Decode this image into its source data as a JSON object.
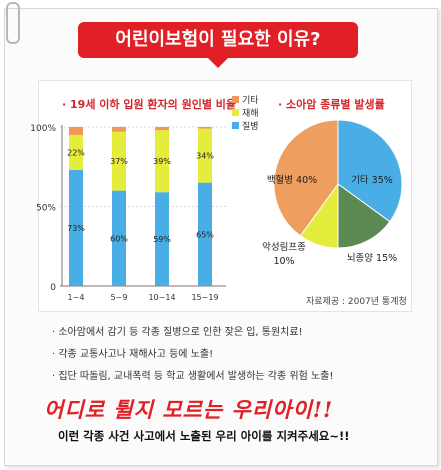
{
  "banner": {
    "title": "어린이보험이 필요한 이유?"
  },
  "chart_data": [
    {
      "type": "bar",
      "title": "· 19세 이하 입원 환자의 원인별 비율",
      "categories": [
        "1~4",
        "5~9",
        "10~14",
        "15~19"
      ],
      "series": [
        {
          "name": "질병",
          "values": [
            73,
            60,
            59,
            65
          ],
          "color": "#4aaee6"
        },
        {
          "name": "재해",
          "values": [
            22,
            37,
            39,
            34
          ],
          "color": "#e4ec3c"
        },
        {
          "name": "기타",
          "values": [
            5,
            3,
            2,
            1
          ],
          "color": "#f09a5a"
        }
      ],
      "yticks": [
        "0",
        "50%",
        "100%"
      ],
      "ylim": [
        0,
        100
      ],
      "legend": "right",
      "stacked": true
    },
    {
      "type": "pie",
      "title": "· 소아암 종류별 발생률",
      "slices": [
        {
          "label": "기타",
          "value": 35,
          "color": "#4aaee6"
        },
        {
          "label": "뇌종양",
          "value": 15,
          "color": "#5a8a52"
        },
        {
          "label": "악성림프종",
          "value": 10,
          "color": "#e4ec3c"
        },
        {
          "label": "백혈병",
          "value": 40,
          "color": "#ee9e5e"
        }
      ]
    }
  ],
  "source_note": "자료제공 : 2007년 통계청",
  "bullets": [
    "· 소아암에서 감기 등 각종 질병으로 인한 잦은 입, 통원치료!",
    "· 각종 교통사고나 재해사고 등에 노출!",
    "· 집단 따돌림, 교내폭력 등 학교 생활에서 발생하는 각종 위험 노출!"
  ],
  "slogan": "어디로 튈지 모르는 우리아이!!",
  "tagline": "이런 각종 사건 사고에서 노출된 우리 아이를 지켜주세요~!!"
}
